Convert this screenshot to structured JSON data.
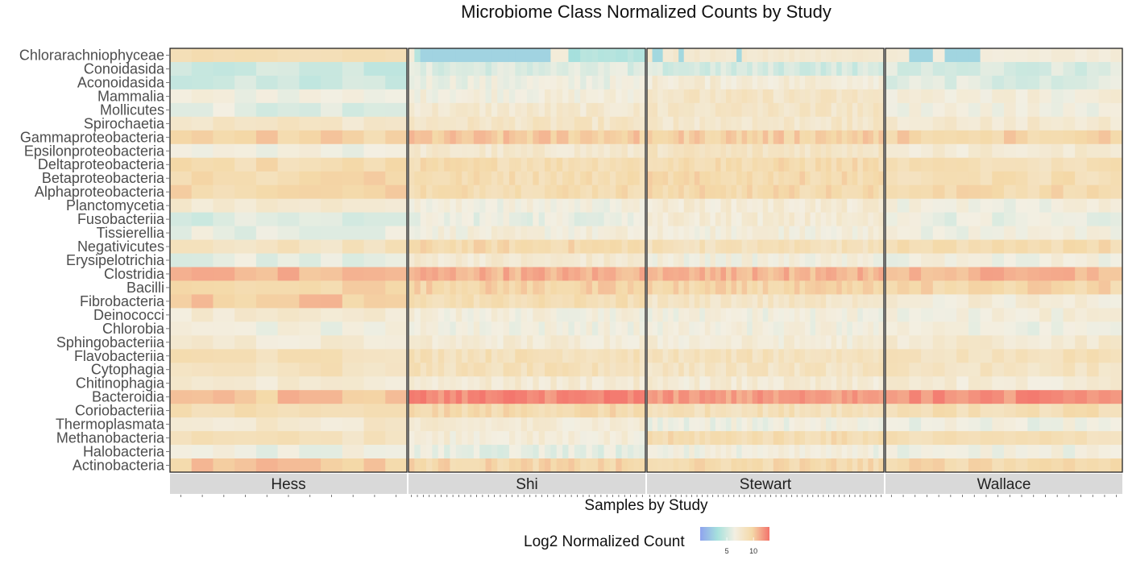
{
  "chart_data": {
    "type": "heatmap",
    "title": "Microbiome Class Normalized Counts by Study",
    "xlabel": "Samples by Study",
    "ylabel": "",
    "legend": {
      "title": "Log2 Normalized Count",
      "ticks": [
        5,
        10
      ],
      "range": [
        0,
        13
      ],
      "colors": [
        "#8fa3ee",
        "#a6e1dd",
        "#f3efe2",
        "#f4d9a8",
        "#f3736b"
      ],
      "placement": "bottom"
    },
    "rows": [
      "Chlorarachniophyceae",
      "Conoidasida",
      "Aconoidasida",
      "Mammalia",
      "Mollicutes",
      "Spirochaetia",
      "Gammaproteobacteria",
      "Epsilonproteobacteria",
      "Deltaproteobacteria",
      "Betaproteobacteria",
      "Alphaproteobacteria",
      "Planctomycetia",
      "Fusobacteriia",
      "Tissierellia",
      "Negativicutes",
      "Erysipelotrichia",
      "Clostridia",
      "Bacilli",
      "Fibrobacteria",
      "Deinococci",
      "Chlorobia",
      "Sphingobacteriia",
      "Flavobacteriia",
      "Cytophagia",
      "Chitinophagia",
      "Bacteroidia",
      "Coriobacteriia",
      "Thermoplasmata",
      "Methanobacteria",
      "Halobacteria",
      "Actinobacteria"
    ],
    "panels": [
      {
        "study": "Hess",
        "n_samples": 11
      },
      {
        "study": "Shi",
        "n_samples": 40
      },
      {
        "study": "Stewart",
        "n_samples": 45
      },
      {
        "study": "Wallace",
        "n_samples": 20
      }
    ],
    "row_base_values": [
      {
        "class": "Chlorarachniophyceae",
        "Hess": 8,
        "Shi": 3,
        "Stewart": 6.5,
        "Wallace": 6
      },
      {
        "class": "Conoidasida",
        "Hess": 4.8,
        "Shi": 5.5,
        "Stewart": 5.2,
        "Wallace": 5.3
      },
      {
        "class": "Aconoidasida",
        "Hess": 4.8,
        "Shi": 6.3,
        "Stewart": 7.2,
        "Wallace": 5.6
      },
      {
        "class": "Mammalia",
        "Hess": 6.6,
        "Shi": 6.8,
        "Stewart": 8,
        "Wallace": 6.8
      },
      {
        "class": "Mollicutes",
        "Hess": 5.8,
        "Shi": 7.5,
        "Stewart": 8,
        "Wallace": 6.6
      },
      {
        "class": "Spirochaetia",
        "Hess": 8,
        "Shi": 8,
        "Stewart": 7.8,
        "Wallace": 7.5
      },
      {
        "class": "Gammaproteobacteria",
        "Hess": 9.8,
        "Shi": 10.2,
        "Stewart": 10,
        "Wallace": 9.8
      },
      {
        "class": "Epsilonproteobacteria",
        "Hess": 6.4,
        "Shi": 7.5,
        "Stewart": 8.2,
        "Wallace": 7.3
      },
      {
        "class": "Deltaproteobacteria",
        "Hess": 9.2,
        "Shi": 9.2,
        "Stewart": 9.3,
        "Wallace": 8.8
      },
      {
        "class": "Betaproteobacteria",
        "Hess": 9.4,
        "Shi": 9.2,
        "Stewart": 9.4,
        "Wallace": 9
      },
      {
        "class": "Alphaproteobacteria",
        "Hess": 9.6,
        "Shi": 9.3,
        "Stewart": 9.4,
        "Wallace": 9.4
      },
      {
        "class": "Planctomycetia",
        "Hess": 7.6,
        "Shi": 6.6,
        "Stewart": 7.2,
        "Wallace": 6.6
      },
      {
        "class": "Fusobacteriia",
        "Hess": 5.4,
        "Shi": 6.2,
        "Stewart": 7.2,
        "Wallace": 6.2
      },
      {
        "class": "Tissierellia",
        "Hess": 6.2,
        "Shi": 6.8,
        "Stewart": 6.9,
        "Wallace": 6.5
      },
      {
        "class": "Negativicutes",
        "Hess": 8.3,
        "Shi": 9.4,
        "Stewart": 8.6,
        "Wallace": 9.3
      },
      {
        "class": "Erysipelotrichia",
        "Hess": 5.8,
        "Shi": 7.4,
        "Stewart": 6.7,
        "Wallace": 6.6
      },
      {
        "class": "Clostridia",
        "Hess": 11,
        "Shi": 11,
        "Stewart": 10.8,
        "Wallace": 10.8
      },
      {
        "class": "Bacilli",
        "Hess": 9.5,
        "Shi": 9.8,
        "Stewart": 9.6,
        "Wallace": 9.6
      },
      {
        "class": "Fibrobacteria",
        "Hess": 10.2,
        "Shi": 9,
        "Stewart": 8,
        "Wallace": 7
      },
      {
        "class": "Deinococci",
        "Hess": 7.2,
        "Shi": 6.8,
        "Stewart": 6.6,
        "Wallace": 6.8
      },
      {
        "class": "Chlorobia",
        "Hess": 6.6,
        "Shi": 6.6,
        "Stewart": 6.6,
        "Wallace": 6.5
      },
      {
        "class": "Sphingobacteriia",
        "Hess": 7.2,
        "Shi": 7.2,
        "Stewart": 7,
        "Wallace": 7.4
      },
      {
        "class": "Flavobacteriia",
        "Hess": 8.8,
        "Shi": 8.8,
        "Stewart": 8.5,
        "Wallace": 8.6
      },
      {
        "class": "Cytophagia",
        "Hess": 8.6,
        "Shi": 8.6,
        "Stewart": 8.2,
        "Wallace": 8.2
      },
      {
        "class": "Chitinophagia",
        "Hess": 7.4,
        "Shi": 7.3,
        "Stewart": 7.2,
        "Wallace": 7.2
      },
      {
        "class": "Bacteroidia",
        "Hess": 10.4,
        "Shi": 12.3,
        "Stewart": 11.6,
        "Wallace": 12
      },
      {
        "class": "Coriobacteriia",
        "Hess": 8.8,
        "Shi": 9.4,
        "Stewart": 8.8,
        "Wallace": 9
      },
      {
        "class": "Thermoplasmata",
        "Hess": 7.6,
        "Shi": 7.2,
        "Stewart": 6.4,
        "Wallace": 6.4
      },
      {
        "class": "Methanobacteria",
        "Hess": 8.4,
        "Shi": 7,
        "Stewart": 9.2,
        "Wallace": 8.8
      },
      {
        "class": "Halobacteria",
        "Hess": 6.4,
        "Shi": 6,
        "Stewart": 6.6,
        "Wallace": 6.5
      },
      {
        "class": "Actinobacteria",
        "Hess": 10.2,
        "Shi": 9.6,
        "Stewart": 9.4,
        "Wallace": 9.4
      }
    ],
    "grid": false
  }
}
